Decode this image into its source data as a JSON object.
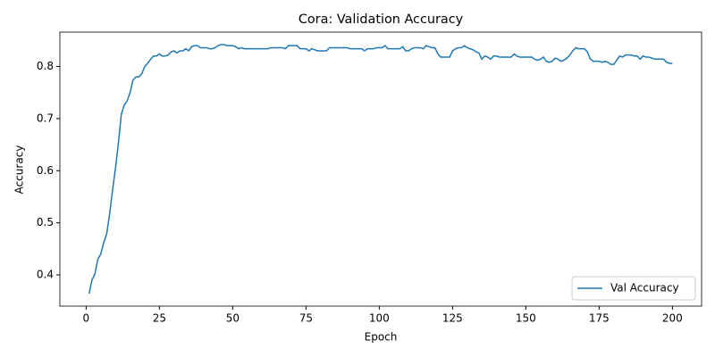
{
  "chart_data": {
    "type": "line",
    "title": "Cora: Validation Accuracy",
    "x_label": "Epoch",
    "y_label": "Accuracy",
    "x": [
      1,
      2,
      3,
      4,
      5,
      6,
      7,
      8,
      9,
      10,
      11,
      12,
      13,
      14,
      15,
      16,
      17,
      18,
      19,
      20,
      21,
      22,
      23,
      24,
      25,
      26,
      27,
      28,
      29,
      30,
      31,
      32,
      33,
      34,
      35,
      36,
      37,
      38,
      39,
      40,
      41,
      42,
      43,
      44,
      45,
      46,
      47,
      48,
      49,
      50,
      51,
      52,
      53,
      54,
      55,
      56,
      57,
      58,
      59,
      60,
      61,
      62,
      63,
      64,
      65,
      66,
      67,
      68,
      69,
      70,
      71,
      72,
      73,
      74,
      75,
      76,
      77,
      78,
      79,
      80,
      81,
      82,
      83,
      84,
      85,
      86,
      87,
      88,
      89,
      90,
      91,
      92,
      93,
      94,
      95,
      96,
      97,
      98,
      99,
      100,
      101,
      102,
      103,
      104,
      105,
      106,
      107,
      108,
      109,
      110,
      111,
      112,
      113,
      114,
      115,
      116,
      117,
      118,
      119,
      120,
      121,
      122,
      123,
      124,
      125,
      126,
      127,
      128,
      129,
      130,
      131,
      132,
      133,
      134,
      135,
      136,
      137,
      138,
      139,
      140,
      141,
      142,
      143,
      144,
      145,
      146,
      147,
      148,
      149,
      150,
      151,
      152,
      153,
      154,
      155,
      156,
      157,
      158,
      159,
      160,
      161,
      162,
      163,
      164,
      165,
      166,
      167,
      168,
      169,
      170,
      171,
      172,
      173,
      174,
      175,
      176,
      177,
      178,
      179,
      180,
      181,
      182,
      183,
      184,
      185,
      186,
      187,
      188,
      189,
      190,
      191,
      192,
      193,
      194,
      195,
      196,
      197,
      198,
      199,
      200
    ],
    "series": [
      {
        "name": "Val Accuracy",
        "color": "#1f77b4",
        "values": [
          0.364,
          0.39,
          0.402,
          0.43,
          0.44,
          0.462,
          0.478,
          0.516,
          0.562,
          0.604,
          0.652,
          0.708,
          0.726,
          0.734,
          0.75,
          0.774,
          0.78,
          0.78,
          0.786,
          0.8,
          0.806,
          0.814,
          0.82,
          0.82,
          0.824,
          0.82,
          0.82,
          0.822,
          0.828,
          0.83,
          0.826,
          0.83,
          0.83,
          0.834,
          0.83,
          0.838,
          0.84,
          0.84,
          0.836,
          0.836,
          0.836,
          0.834,
          0.834,
          0.836,
          0.84,
          0.842,
          0.842,
          0.84,
          0.84,
          0.84,
          0.838,
          0.834,
          0.836,
          0.834,
          0.834,
          0.834,
          0.834,
          0.834,
          0.834,
          0.834,
          0.834,
          0.834,
          0.836,
          0.836,
          0.836,
          0.836,
          0.836,
          0.834,
          0.84,
          0.84,
          0.84,
          0.84,
          0.834,
          0.834,
          0.834,
          0.83,
          0.834,
          0.832,
          0.83,
          0.83,
          0.83,
          0.83,
          0.836,
          0.836,
          0.836,
          0.836,
          0.836,
          0.836,
          0.836,
          0.834,
          0.834,
          0.834,
          0.834,
          0.834,
          0.83,
          0.834,
          0.834,
          0.834,
          0.836,
          0.836,
          0.836,
          0.84,
          0.834,
          0.834,
          0.834,
          0.834,
          0.834,
          0.838,
          0.83,
          0.83,
          0.834,
          0.836,
          0.836,
          0.836,
          0.834,
          0.84,
          0.838,
          0.836,
          0.836,
          0.824,
          0.818,
          0.818,
          0.818,
          0.818,
          0.83,
          0.834,
          0.836,
          0.836,
          0.84,
          0.836,
          0.834,
          0.832,
          0.828,
          0.826,
          0.814,
          0.82,
          0.818,
          0.814,
          0.82,
          0.82,
          0.818,
          0.818,
          0.818,
          0.818,
          0.818,
          0.824,
          0.82,
          0.818,
          0.818,
          0.818,
          0.818,
          0.818,
          0.814,
          0.812,
          0.814,
          0.818,
          0.81,
          0.808,
          0.81,
          0.816,
          0.814,
          0.81,
          0.812,
          0.816,
          0.822,
          0.83,
          0.836,
          0.834,
          0.834,
          0.834,
          0.828,
          0.814,
          0.81,
          0.81,
          0.81,
          0.808,
          0.81,
          0.808,
          0.804,
          0.804,
          0.812,
          0.82,
          0.818,
          0.822,
          0.822,
          0.822,
          0.82,
          0.82,
          0.814,
          0.82,
          0.818,
          0.818,
          0.816,
          0.814,
          0.814,
          0.814,
          0.814,
          0.808,
          0.806,
          0.806
        ]
      }
    ],
    "xlim": [
      -8.95,
      209.95
    ],
    "ylim": [
      0.3401,
      0.8659
    ],
    "xticks": [
      0,
      25,
      50,
      75,
      100,
      125,
      150,
      175,
      200
    ],
    "yticks": [
      0.4,
      0.5,
      0.6,
      0.7,
      0.8
    ],
    "legend": "lower right"
  }
}
